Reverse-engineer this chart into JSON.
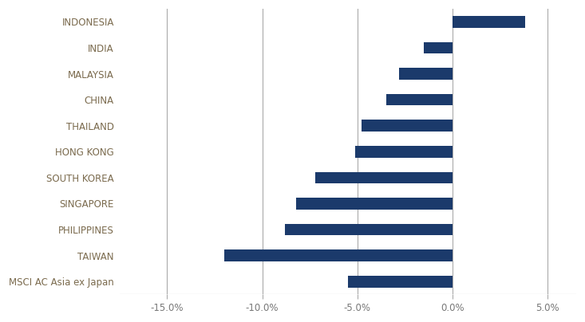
{
  "categories": [
    "INDONESIA",
    "INDIA",
    "MALAYSIA",
    "CHINA",
    "THAILAND",
    "HONG KONG",
    "SOUTH KOREA",
    "SINGAPORE",
    "PHILIPPINES",
    "TAIWAN",
    "MSCI AC Asia ex Japan"
  ],
  "values": [
    3.8,
    -1.5,
    -2.8,
    -3.5,
    -4.8,
    -5.1,
    -7.2,
    -8.2,
    -8.8,
    -12.0,
    -5.5
  ],
  "bar_color": "#1B3A6B",
  "background_color": "#ffffff",
  "xlim": [
    -17.5,
    6.5
  ],
  "xticks": [
    -15.0,
    -10.0,
    -5.0,
    0.0,
    5.0
  ],
  "xtick_labels": [
    "-15.0%",
    "-10.0%",
    "-5.0%",
    "0.0%",
    "5.0%"
  ],
  "grid_color": "#aaaaaa",
  "label_fontsize": 8.5,
  "tick_fontsize": 8.5,
  "label_color": "#7B6B4E",
  "bar_height": 0.45
}
